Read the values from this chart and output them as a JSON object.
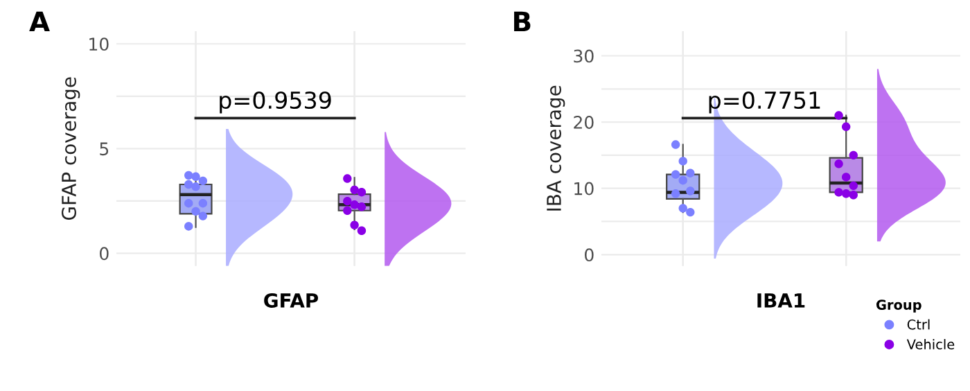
{
  "chart_data": [
    {
      "type": "box",
      "title": "A",
      "xlabel": "GFAP",
      "ylabel": "GFAP coverage",
      "categories": [
        null,
        null
      ],
      "tick_labels": "y",
      "grid": true,
      "legend": false,
      "marker": "circle",
      "ylim": [
        -0.6,
        10.6
      ],
      "yticks": [
        0,
        {
          "value": 2.5,
          "label": null
        },
        5,
        {
          "value": 7.5,
          "label": null
        },
        10
      ],
      "colors": [
        "#a3abf5",
        "#b98ae6"
      ],
      "boxes": [
        {
          "low": 1.25,
          "q1": 1.89,
          "median": 2.8,
          "q3": 3.29,
          "high": 3.78
        },
        {
          "low": 1.14,
          "q1": 2.04,
          "median": 2.32,
          "q3": 2.82,
          "high": 3.61
        }
      ],
      "annotations": [
        "p=0.9539"
      ],
      "series": [
        {
          "type": "scatter",
          "color": "#7b80ff",
          "values": [
            3.72,
            null
          ]
        },
        {
          "type": "scatter",
          "color": "#7b80ff",
          "values": [
            3.66,
            null
          ]
        },
        {
          "type": "scatter",
          "color": "#7b80ff",
          "values": [
            3.46,
            null
          ]
        },
        {
          "type": "scatter",
          "color": "#7b80ff",
          "values": [
            3.29,
            null
          ]
        },
        {
          "type": "scatter",
          "color": "#7b80ff",
          "values": [
            3.18,
            null
          ]
        },
        {
          "type": "scatter",
          "color": "#7b80ff",
          "values": [
            2.39,
            null
          ]
        },
        {
          "type": "scatter",
          "color": "#7b80ff",
          "values": [
            2.39,
            null
          ]
        },
        {
          "type": "scatter",
          "color": "#7b80ff",
          "values": [
            2.0,
            null
          ]
        },
        {
          "type": "scatter",
          "color": "#7b80ff",
          "values": [
            1.78,
            null
          ]
        },
        {
          "type": "scatter",
          "color": "#7b80ff",
          "values": [
            1.29,
            null
          ]
        },
        {
          "type": "scatter",
          "color": "#8a00e6",
          "values": [
            null,
            3.57
          ]
        },
        {
          "type": "scatter",
          "color": "#8a00e6",
          "values": [
            null,
            3.03
          ]
        },
        {
          "type": "scatter",
          "color": "#8a00e6",
          "values": [
            null,
            2.92
          ]
        },
        {
          "type": "scatter",
          "color": "#8a00e6",
          "values": [
            null,
            2.49
          ]
        },
        {
          "type": "scatter",
          "color": "#8a00e6",
          "values": [
            null,
            2.32
          ]
        },
        {
          "type": "scatter",
          "color": "#8a00e6",
          "values": [
            null,
            2.22
          ]
        },
        {
          "type": "scatter",
          "color": "#8a00e6",
          "values": [
            null,
            2.04
          ]
        },
        {
          "type": "scatter",
          "color": "#8a00e6",
          "values": [
            null,
            1.35
          ]
        },
        {
          "type": "scatter",
          "color": "#8a00e6",
          "values": [
            null,
            1.08
          ]
        }
      ]
    },
    {
      "type": "box",
      "title": "B",
      "xlabel": "IBA1",
      "ylabel": "IBA coverage",
      "categories": [
        null,
        null
      ],
      "tick_labels": "y",
      "grid": true,
      "legend": "bottom right",
      "legend_title": "Group",
      "marker": "circle",
      "ylim": [
        -1.7,
        33.7
      ],
      "yticks": [
        0,
        {
          "value": 5,
          "label": null
        },
        10,
        {
          "value": 15,
          "label": null
        },
        20,
        {
          "value": 25,
          "label": null
        },
        30
      ],
      "colors": [
        "#a3abf5",
        "#b98ae6"
      ],
      "boxes": [
        {
          "low": 6.4,
          "q1": 8.4,
          "median": 9.4,
          "q3": 12.1,
          "high": 16.6
        },
        {
          "low": 9.0,
          "q1": 9.4,
          "median": 10.8,
          "q3": 14.6,
          "high": 21.0
        }
      ],
      "annotations": [
        "p=0.7751"
      ],
      "series": [
        {
          "type": "scatter",
          "name": "Ctrl",
          "color": "#7b80ff",
          "values": [
            16.6,
            null
          ]
        },
        {
          "type": "scatter",
          "color": "#7b80ff",
          "values": [
            14.1,
            null
          ]
        },
        {
          "type": "scatter",
          "color": "#7b80ff",
          "values": [
            12.3,
            null
          ]
        },
        {
          "type": "scatter",
          "color": "#7b80ff",
          "values": [
            12.1,
            null
          ]
        },
        {
          "type": "scatter",
          "color": "#7b80ff",
          "values": [
            11.2,
            null
          ]
        },
        {
          "type": "scatter",
          "color": "#7b80ff",
          "values": [
            9.6,
            null
          ]
        },
        {
          "type": "scatter",
          "color": "#7b80ff",
          "values": [
            9.2,
            null
          ]
        },
        {
          "type": "scatter",
          "color": "#7b80ff",
          "values": [
            7.0,
            null
          ]
        },
        {
          "type": "scatter",
          "color": "#7b80ff",
          "values": [
            6.4,
            null
          ]
        },
        {
          "type": "scatter",
          "name": "Vehicle",
          "color": "#8a00e6",
          "values": [
            null,
            21.0
          ]
        },
        {
          "type": "scatter",
          "color": "#8a00e6",
          "values": [
            null,
            19.3
          ]
        },
        {
          "type": "scatter",
          "color": "#8a00e6",
          "values": [
            null,
            15.0
          ]
        },
        {
          "type": "scatter",
          "color": "#8a00e6",
          "values": [
            null,
            13.7
          ]
        },
        {
          "type": "scatter",
          "color": "#8a00e6",
          "values": [
            null,
            11.7
          ]
        },
        {
          "type": "scatter",
          "color": "#8a00e6",
          "values": [
            null,
            10.4
          ]
        },
        {
          "type": "scatter",
          "color": "#8a00e6",
          "values": [
            null,
            9.4
          ]
        },
        {
          "type": "scatter",
          "color": "#8a00e6",
          "values": [
            null,
            9.2
          ]
        },
        {
          "type": "scatter",
          "color": "#8a00e6",
          "values": [
            null,
            9.0
          ]
        }
      ]
    }
  ]
}
